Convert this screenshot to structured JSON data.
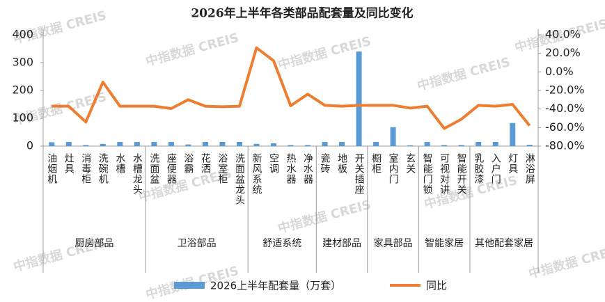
{
  "chart_data": {
    "type": "bar+line",
    "title": "2026年上半年各类部品配套量及同比变化",
    "watermark": "中指数据 CREIS",
    "groups": [
      {
        "name": "厨房部品",
        "categories": [
          "油烟机",
          "灶具",
          "消毒柜",
          "洗碗机",
          "水槽",
          "水槽龙头"
        ]
      },
      {
        "name": "卫浴部品",
        "categories": [
          "洗面盆",
          "座便器",
          "浴霸",
          "花洒",
          "浴室柜",
          "洗面盆龙头"
        ]
      },
      {
        "name": "舒适系统",
        "categories": [
          "新风系统",
          "空调",
          "热水器",
          "净水器"
        ]
      },
      {
        "name": "建材部品",
        "categories": [
          "瓷砖",
          "地板",
          "开关插座"
        ]
      },
      {
        "name": "家具部品",
        "categories": [
          "橱柜",
          "室内门",
          "玄关"
        ]
      },
      {
        "name": "智能家居",
        "categories": [
          "智能门锁",
          "可视对讲",
          "智能开关"
        ]
      },
      {
        "name": "其他配套家居",
        "categories": [
          "乳胶漆",
          "入户门",
          "灯具",
          "淋浴屏"
        ]
      }
    ],
    "series": [
      {
        "name": "2026上半年配套量（万套）",
        "type": "bar",
        "color": "#5b9bd5",
        "values": [
          14,
          15,
          4,
          8,
          15,
          15,
          15,
          15,
          6,
          15,
          15,
          15,
          8,
          10,
          4,
          4,
          15,
          15,
          340,
          15,
          68,
          3,
          15,
          4,
          4,
          15,
          15,
          83,
          5
        ]
      },
      {
        "name": "同比",
        "type": "line",
        "axis": "y2",
        "color": "#ed7d31",
        "values": [
          -37,
          -37,
          -54,
          -11,
          -37,
          -37,
          -37,
          -39.5,
          -30,
          -37,
          -37.5,
          -37,
          26,
          12,
          -36.5,
          -24,
          -36,
          -37,
          -36,
          -36,
          -36,
          -39,
          -37,
          -61,
          -51,
          -36,
          -37,
          -35,
          -58
        ]
      }
    ],
    "ylim": [
      0,
      400
    ],
    "yticks": [
      0,
      100,
      200,
      300,
      400
    ],
    "y2lim": [
      -80,
      40
    ],
    "y2ticks": [
      {
        "value": -80,
        "label": "-80.0%"
      },
      {
        "value": -60,
        "label": "-60.0%"
      },
      {
        "value": -40,
        "label": "-40.0%"
      },
      {
        "value": -20,
        "label": "-20.0%"
      },
      {
        "value": 0,
        "label": "0.0%"
      },
      {
        "value": 20,
        "label": "20.0%"
      },
      {
        "value": 40,
        "label": "40.0%"
      }
    ]
  }
}
